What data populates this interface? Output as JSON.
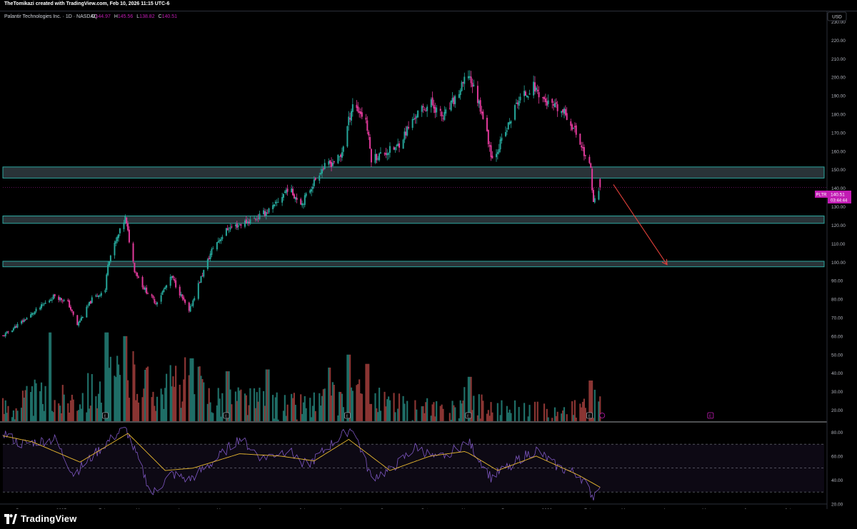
{
  "attribution": "TheTomikazi created with TradingView.com, Feb 10, 2026 11:15 UTC-6",
  "brand": {
    "name": "TradingView",
    "icon": "tradingview-logo-icon"
  },
  "legend": {
    "symbol_title": "Palantir Technologies Inc. · 1D · NASDAQ",
    "open_label": "O",
    "open_value": "144.97",
    "high_label": "H",
    "high_value": "145.56",
    "low_label": "L",
    "low_value": "138.82",
    "close_label": "C",
    "close_value": "140.51"
  },
  "currency": "USD",
  "price_tag": {
    "symbol": "PLTR",
    "price": "140.51",
    "countdown": "03:44:44"
  },
  "colors": {
    "up": "#26a69a",
    "down": "#ef5350",
    "last_price": "#c21cb4",
    "zone": "#4a5c66",
    "zone_border": "#2fb5ad",
    "arrow": "#e0403a",
    "rsi": "#7e57c2",
    "rsi_ma": "#e8b830"
  },
  "chart_data": [
    {
      "type": "candlestick",
      "title": "",
      "ylabel": "",
      "ylim": [
        14,
        236
      ],
      "y_ticks": [
        20,
        30,
        40,
        50,
        60,
        70,
        80,
        90,
        100,
        110,
        120,
        130,
        140,
        150,
        160,
        170,
        180,
        190,
        200,
        210,
        220,
        230
      ],
      "y_tick_labels": [
        "20.00",
        "30.00",
        "40.00",
        "50.00",
        "60.00",
        "70.00",
        "80.00",
        "90.00",
        "100.00",
        "110.00",
        "120.00",
        "130.00",
        "140.00",
        "150.00",
        "160.00",
        "170.00",
        "180.00",
        "190.00",
        "200.00",
        "210.00",
        "220.00",
        "230.00"
      ],
      "x_axis": {
        "start": "2024-11-18",
        "labels": [
          {
            "date": "2024-12-01",
            "label": "Dec"
          },
          {
            "date": "2025-01-01",
            "label": "2025"
          },
          {
            "date": "2025-02-01",
            "label": "Feb"
          },
          {
            "date": "2025-03-01",
            "label": "Mar"
          },
          {
            "date": "2025-04-01",
            "label": "Apr"
          },
          {
            "date": "2025-05-01",
            "label": "May"
          },
          {
            "date": "2025-06-01",
            "label": "Jun"
          },
          {
            "date": "2025-07-01",
            "label": "Jul"
          },
          {
            "date": "2025-08-01",
            "label": "Aug"
          },
          {
            "date": "2025-09-01",
            "label": "Sep"
          },
          {
            "date": "2025-10-01",
            "label": "Oct"
          },
          {
            "date": "2025-11-01",
            "label": "Nov"
          },
          {
            "date": "2025-12-01",
            "label": "Dec"
          },
          {
            "date": "2026-01-01",
            "label": "2026"
          },
          {
            "date": "2026-02-01",
            "label": "Feb"
          },
          {
            "date": "2026-03-01",
            "label": "Mar"
          },
          {
            "date": "2026-04-01",
            "label": "Apr"
          },
          {
            "date": "2026-05-01",
            "label": "May"
          },
          {
            "date": "2026-06-01",
            "label": "Jun"
          },
          {
            "date": "2026-07-01",
            "label": "Jul"
          }
        ],
        "end": "2026-07-22"
      },
      "price_path": [
        [
          "2024-11-18",
          60
        ],
        [
          "2024-12-10",
          72
        ],
        [
          "2024-12-27",
          82
        ],
        [
          "2025-01-06",
          78
        ],
        [
          "2025-01-13",
          66
        ],
        [
          "2025-01-24",
          80
        ],
        [
          "2025-02-03",
          85
        ],
        [
          "2025-02-05",
          100
        ],
        [
          "2025-02-18",
          124
        ],
        [
          "2025-02-25",
          96
        ],
        [
          "2025-03-04",
          86
        ],
        [
          "2025-03-13",
          78
        ],
        [
          "2025-03-25",
          92
        ],
        [
          "2025-04-07",
          73
        ],
        [
          "2025-04-14",
          88
        ],
        [
          "2025-04-25",
          108
        ],
        [
          "2025-05-06",
          118
        ],
        [
          "2025-05-28",
          124
        ],
        [
          "2025-06-10",
          130
        ],
        [
          "2025-06-20",
          140
        ],
        [
          "2025-07-01",
          132
        ],
        [
          "2025-07-15",
          150
        ],
        [
          "2025-07-30",
          157
        ],
        [
          "2025-08-08",
          186
        ],
        [
          "2025-08-18",
          177
        ],
        [
          "2025-08-22",
          156
        ],
        [
          "2025-09-10",
          162
        ],
        [
          "2025-09-25",
          180
        ],
        [
          "2025-10-06",
          186
        ],
        [
          "2025-10-15",
          178
        ],
        [
          "2025-10-28",
          193
        ],
        [
          "2025-11-03",
          202
        ],
        [
          "2025-11-13",
          182
        ],
        [
          "2025-11-21",
          156
        ],
        [
          "2025-12-01",
          170
        ],
        [
          "2025-12-10",
          187
        ],
        [
          "2025-12-22",
          195
        ],
        [
          "2026-01-01",
          186
        ],
        [
          "2026-01-15",
          180
        ],
        [
          "2026-01-23",
          170
        ],
        [
          "2026-02-03",
          150
        ],
        [
          "2026-02-05",
          132
        ],
        [
          "2026-02-10",
          140.51
        ]
      ],
      "volume_path": [
        [
          "2024-11-18",
          24
        ],
        [
          "2024-12-15",
          30
        ],
        [
          "2025-01-01",
          28
        ],
        [
          "2025-02-03",
          38
        ],
        [
          "2025-02-20",
          44
        ],
        [
          "2025-03-15",
          34
        ],
        [
          "2025-04-07",
          40
        ],
        [
          "2025-04-25",
          30
        ],
        [
          "2025-05-15",
          29
        ],
        [
          "2025-06-15",
          24
        ],
        [
          "2025-07-15",
          26
        ],
        [
          "2025-08-05",
          32
        ],
        [
          "2025-08-25",
          27
        ],
        [
          "2025-09-20",
          22
        ],
        [
          "2025-10-15",
          21
        ],
        [
          "2025-11-05",
          28
        ],
        [
          "2025-11-25",
          22
        ],
        [
          "2025-12-20",
          20
        ],
        [
          "2026-01-15",
          19
        ],
        [
          "2026-02-03",
          29
        ],
        [
          "2026-02-10",
          22
        ]
      ],
      "volume_spikes": [
        [
          "2024-12-23",
          62
        ],
        [
          "2025-02-04",
          62
        ],
        [
          "2025-02-18",
          60
        ],
        [
          "2025-04-09",
          48
        ],
        [
          "2025-05-06",
          41
        ],
        [
          "2025-06-05",
          42
        ],
        [
          "2025-07-21",
          43
        ],
        [
          "2025-08-05",
          50
        ],
        [
          "2025-08-19",
          45
        ],
        [
          "2025-11-04",
          38
        ],
        [
          "2026-02-03",
          36
        ]
      ],
      "zones": [
        {
          "low": 145.5,
          "high": 151.5
        },
        {
          "low": 121,
          "high": 125
        },
        {
          "low": 97.5,
          "high": 100.5
        }
      ],
      "projection": {
        "from": {
          "date": "2026-02-20",
          "price": 142
        },
        "to": {
          "date": "2026-04-01",
          "price": 99
        }
      },
      "earnings_markers": [
        {
          "date": "2024-11-04",
          "label": "E"
        },
        {
          "date": "2025-02-03",
          "label": "E"
        },
        {
          "date": "2025-05-05",
          "label": "E"
        },
        {
          "date": "2025-08-04",
          "label": "E"
        },
        {
          "date": "2025-11-03",
          "label": "E"
        },
        {
          "date": "2026-02-02",
          "label": "E"
        },
        {
          "date": "2026-05-04",
          "label": "E"
        }
      ],
      "last_price": 140.51
    },
    {
      "type": "line",
      "title": "",
      "ylim": [
        20,
        85
      ],
      "y_ticks": [
        20,
        40,
        60,
        80
      ],
      "y_tick_labels": [
        "20.00",
        "40.00",
        "60.00",
        "80.00"
      ],
      "bands": {
        "upper": 70,
        "middle": 50,
        "lower": 30
      },
      "rsi_path": [
        [
          "2024-11-18",
          80
        ],
        [
          "2024-12-01",
          70
        ],
        [
          "2024-12-27",
          74
        ],
        [
          "2025-01-10",
          45
        ],
        [
          "2025-01-20",
          55
        ],
        [
          "2025-02-05",
          72
        ],
        [
          "2025-02-18",
          84
        ],
        [
          "2025-03-10",
          28
        ],
        [
          "2025-03-25",
          45
        ],
        [
          "2025-04-07",
          40
        ],
        [
          "2025-04-25",
          55
        ],
        [
          "2025-05-15",
          75
        ],
        [
          "2025-06-01",
          58
        ],
        [
          "2025-06-20",
          65
        ],
        [
          "2025-07-05",
          52
        ],
        [
          "2025-07-25",
          72
        ],
        [
          "2025-08-08",
          84
        ],
        [
          "2025-08-22",
          42
        ],
        [
          "2025-09-05",
          48
        ],
        [
          "2025-09-25",
          68
        ],
        [
          "2025-10-10",
          57
        ],
        [
          "2025-11-03",
          72
        ],
        [
          "2025-11-20",
          42
        ],
        [
          "2025-12-01",
          50
        ],
        [
          "2025-12-15",
          60
        ],
        [
          "2025-12-24",
          65
        ],
        [
          "2026-01-10",
          50
        ],
        [
          "2026-01-25",
          45
        ],
        [
          "2026-02-05",
          26
        ],
        [
          "2026-02-10",
          38
        ]
      ],
      "rsi_ma_path": [
        [
          "2024-11-18",
          77
        ],
        [
          "2024-12-10",
          72
        ],
        [
          "2025-01-15",
          55
        ],
        [
          "2025-02-20",
          79
        ],
        [
          "2025-03-20",
          48
        ],
        [
          "2025-04-10",
          50
        ],
        [
          "2025-05-15",
          62
        ],
        [
          "2025-06-15",
          60
        ],
        [
          "2025-07-10",
          56
        ],
        [
          "2025-08-05",
          74
        ],
        [
          "2025-09-05",
          48
        ],
        [
          "2025-10-05",
          60
        ],
        [
          "2025-11-01",
          64
        ],
        [
          "2025-11-25",
          48
        ],
        [
          "2025-12-24",
          60
        ],
        [
          "2026-01-25",
          44
        ],
        [
          "2026-02-10",
          34
        ]
      ]
    }
  ]
}
